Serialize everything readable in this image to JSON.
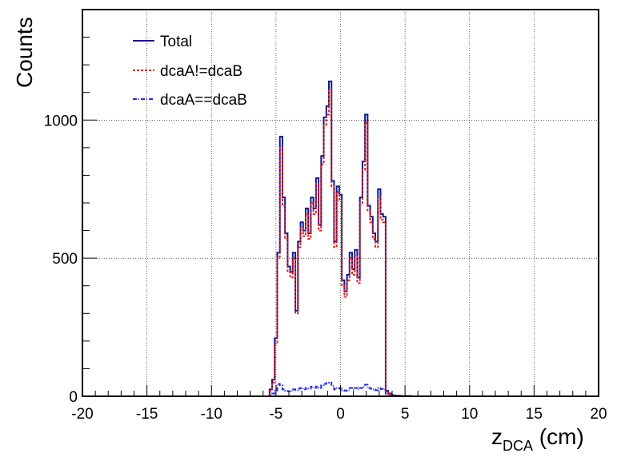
{
  "chart_data": {
    "type": "line",
    "title": "",
    "xlabel_main": "z",
    "xlabel_sub": "DCA",
    "xlabel_unit": "(cm)",
    "ylabel": "Counts",
    "xlim": [
      -20,
      20
    ],
    "ylim": [
      0,
      1400
    ],
    "grid": true,
    "x_ticks": [
      -20,
      -15,
      -10,
      -5,
      0,
      5,
      10,
      15,
      20
    ],
    "x_tick_labels": [
      "-20",
      "-15",
      "-10",
      "-5",
      "0",
      "5",
      "10",
      "15",
      "20"
    ],
    "y_ticks": [
      0,
      500,
      1000
    ],
    "y_tick_labels": [
      "0",
      "500",
      "1000"
    ],
    "legend_position": "top-left",
    "x": [
      -5.4,
      -5.2,
      -5.0,
      -4.8,
      -4.6,
      -4.4,
      -4.2,
      -4.0,
      -3.8,
      -3.6,
      -3.4,
      -3.2,
      -3.0,
      -2.8,
      -2.6,
      -2.4,
      -2.2,
      -2.0,
      -1.8,
      -1.6,
      -1.4,
      -1.2,
      -1.0,
      -0.8,
      -0.6,
      -0.4,
      -0.2,
      0.0,
      0.2,
      0.4,
      0.6,
      0.8,
      1.0,
      1.2,
      1.4,
      1.6,
      1.8,
      2.0,
      2.2,
      2.4,
      2.6,
      2.8,
      3.0,
      3.2,
      3.4,
      3.6,
      3.8,
      4.0,
      4.2,
      4.4,
      4.6,
      4.8,
      5.0,
      5.2,
      5.4
    ],
    "series": [
      {
        "name": "Total",
        "color": "#0a1a8c",
        "style": "solid",
        "values": [
          25,
          60,
          210,
          520,
          940,
          720,
          590,
          470,
          450,
          520,
          310,
          560,
          630,
          600,
          680,
          590,
          720,
          680,
          790,
          620,
          870,
          1010,
          1050,
          1140,
          780,
          560,
          760,
          730,
          420,
          380,
          440,
          520,
          460,
          530,
          430,
          720,
          850,
          1020,
          690,
          650,
          590,
          560,
          750,
          660,
          650,
          20,
          10,
          5,
          3,
          2,
          2,
          1,
          1,
          1,
          1
        ]
      },
      {
        "name": "dcaA!=dcaB",
        "color": "#e11d1d",
        "style": "dashed",
        "values": [
          20,
          50,
          190,
          500,
          900,
          690,
          570,
          450,
          430,
          500,
          300,
          540,
          610,
          580,
          660,
          570,
          700,
          660,
          770,
          600,
          840,
          980,
          1020,
          1110,
          760,
          540,
          740,
          710,
          400,
          360,
          420,
          500,
          440,
          510,
          410,
          700,
          820,
          990,
          670,
          630,
          570,
          540,
          720,
          640,
          630,
          18,
          8,
          4,
          2,
          1,
          1,
          1,
          1,
          1,
          1
        ]
      },
      {
        "name": "dcaA==dcaB",
        "color": "#1c2ce6",
        "style": "dotted",
        "values": [
          5,
          10,
          20,
          45,
          40,
          25,
          20,
          18,
          20,
          25,
          22,
          28,
          30,
          25,
          30,
          28,
          35,
          30,
          35,
          30,
          40,
          45,
          48,
          50,
          38,
          25,
          30,
          28,
          22,
          20,
          22,
          30,
          25,
          30,
          25,
          30,
          35,
          42,
          30,
          28,
          25,
          22,
          30,
          26,
          25,
          2,
          2,
          1,
          1,
          1,
          1,
          0,
          0,
          0,
          0
        ]
      }
    ]
  }
}
